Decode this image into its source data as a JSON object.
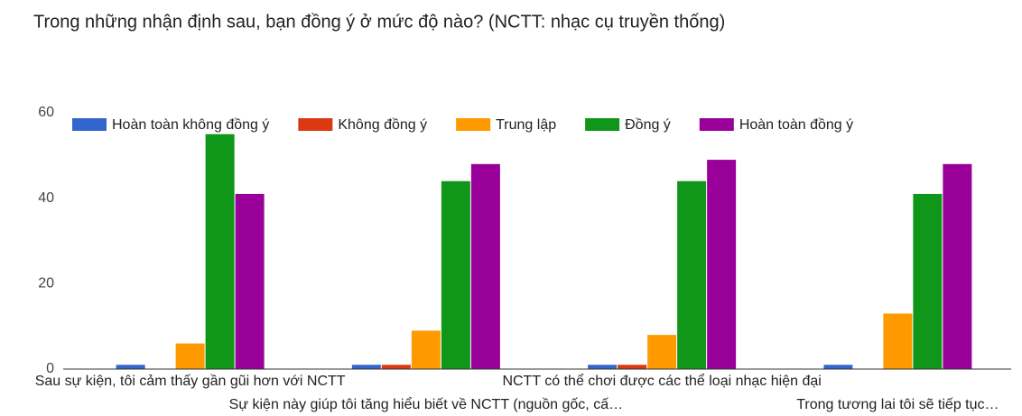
{
  "chart_data": {
    "type": "bar",
    "title": "Trong những nhận định sau, bạn đồng ý ở mức độ nào?  (NCTT: nhạc cụ truyền thống)",
    "categories": [
      "Sau sự kiện, tôi cảm thấy gần gũi hơn với NCTT",
      "Sự kiện này giúp tôi tăng hiểu biết về NCTT (nguồn gốc, cấ…",
      "NCTT có thể chơi được các thể loại nhạc hiện đại",
      "Trong tương lai tôi sẽ tiếp tục…"
    ],
    "series": [
      {
        "name": "Hoàn toàn không đồng ý",
        "color": "#3366cc",
        "values": [
          1,
          1,
          1,
          1
        ]
      },
      {
        "name": "Không đồng ý",
        "color": "#dc3912",
        "values": [
          0,
          1,
          1,
          0
        ]
      },
      {
        "name": "Trung lập",
        "color": "#ff9900",
        "values": [
          6,
          9,
          8,
          13
        ]
      },
      {
        "name": "Đồng ý",
        "color": "#109618",
        "values": [
          55,
          44,
          44,
          41
        ]
      },
      {
        "name": "Hoàn toàn đồng ý",
        "color": "#990099",
        "values": [
          41,
          48,
          49,
          48
        ]
      }
    ],
    "ylim": [
      0,
      60
    ],
    "yticks": [
      0,
      20,
      40,
      60
    ],
    "legend": "top"
  }
}
